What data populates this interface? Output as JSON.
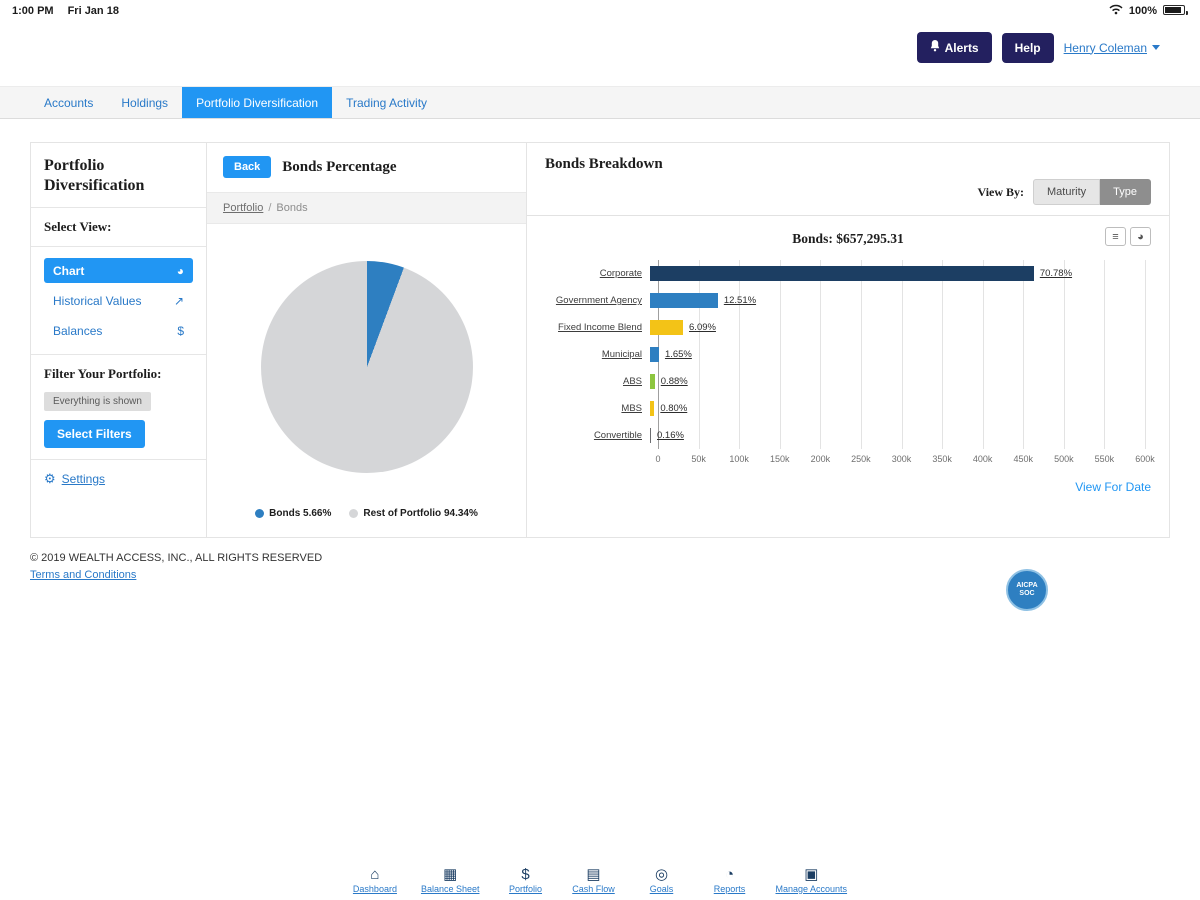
{
  "status_bar": {
    "time": "1:00 PM",
    "date": "Fri Jan 18",
    "battery": "100%"
  },
  "header": {
    "alerts_label": "Alerts",
    "help_label": "Help",
    "user_name": "Henry Coleman"
  },
  "nav": {
    "tabs": [
      {
        "label": "Accounts",
        "active": false
      },
      {
        "label": "Holdings",
        "active": false
      },
      {
        "label": "Portfolio Diversification",
        "active": true
      },
      {
        "label": "Trading Activity",
        "active": false
      }
    ]
  },
  "sidebar": {
    "title": "Portfolio Diversification",
    "select_view_heading": "Select View:",
    "views": [
      {
        "label": "Chart",
        "icon": "pie",
        "active": true
      },
      {
        "label": "Historical Values",
        "icon": "line",
        "active": false
      },
      {
        "label": "Balances",
        "icon": "dollar",
        "active": false
      }
    ],
    "filter_heading": "Filter Your Portfolio:",
    "filter_status": "Everything is shown",
    "select_filters_label": "Select Filters",
    "settings_label": "Settings"
  },
  "bonds_percentage": {
    "back_label": "Back",
    "title": "Bonds Percentage",
    "breadcrumb_root": "Portfolio",
    "breadcrumb_separator": "/",
    "breadcrumb_current": "Bonds",
    "legend": [
      {
        "label": "Bonds 5.66%",
        "color": "#2e7fc1"
      },
      {
        "label": "Rest of Portfolio 94.34%",
        "color": "#d5d6d8"
      }
    ]
  },
  "bonds_breakdown": {
    "title": "Bonds Breakdown",
    "view_by_label": "View By:",
    "view_options": [
      {
        "label": "Maturity",
        "active": false
      },
      {
        "label": "Type",
        "active": true
      }
    ],
    "tools": [
      {
        "icon": "list"
      },
      {
        "icon": "pie"
      }
    ],
    "view_for_date_label": "View For Date"
  },
  "footer": {
    "copyright": "© 2019 WEALTH ACCESS, INC., ALL RIGHTS RESERVED",
    "terms_label": "Terms and Conditions",
    "badge_line1": "AICPA",
    "badge_line2": "SOC"
  },
  "bottom_nav": {
    "items": [
      {
        "label": "Dashboard",
        "icon": "home"
      },
      {
        "label": "Balance Sheet",
        "icon": "table"
      },
      {
        "label": "Portfolio",
        "icon": "dollar"
      },
      {
        "label": "Cash Flow",
        "icon": "cashflow"
      },
      {
        "label": "Goals",
        "icon": "goals"
      },
      {
        "label": "Reports",
        "icon": "reports"
      },
      {
        "label": "Manage Accounts",
        "icon": "accounts"
      }
    ]
  },
  "chart_data": [
    {
      "type": "pie",
      "title": "Bonds Percentage",
      "labels": [
        "Bonds",
        "Rest of Portfolio"
      ],
      "values": [
        5.66,
        94.34
      ],
      "colors": [
        "#2e7fc1",
        "#d5d6d8"
      ],
      "legend_position": "bottom"
    },
    {
      "type": "bar",
      "orientation": "horizontal",
      "title": "Bonds: $657,295.31",
      "categories": [
        "Corporate",
        "Government Agency",
        "Fixed Income Blend",
        "Municipal",
        "ABS",
        "MBS",
        "Convertible"
      ],
      "values": [
        465233,
        82228,
        40029,
        10845,
        5784,
        5258,
        1052
      ],
      "percent_labels": [
        "70.78%",
        "12.51%",
        "6.09%",
        "1.65%",
        "0.88%",
        "0.80%",
        "0.16%"
      ],
      "colors": [
        "#1c3e63",
        "#2e7fc1",
        "#f3c317",
        "#2e7fc1",
        "#8dc63f",
        "#f3c317",
        "#6d6e71"
      ],
      "xlim": [
        0,
        600000
      ],
      "ticks": [
        "0",
        "50k",
        "100k",
        "150k",
        "200k",
        "250k",
        "300k",
        "350k",
        "400k",
        "450k",
        "500k",
        "550k",
        "600k"
      ],
      "grid": true,
      "legend_position": "none"
    }
  ]
}
